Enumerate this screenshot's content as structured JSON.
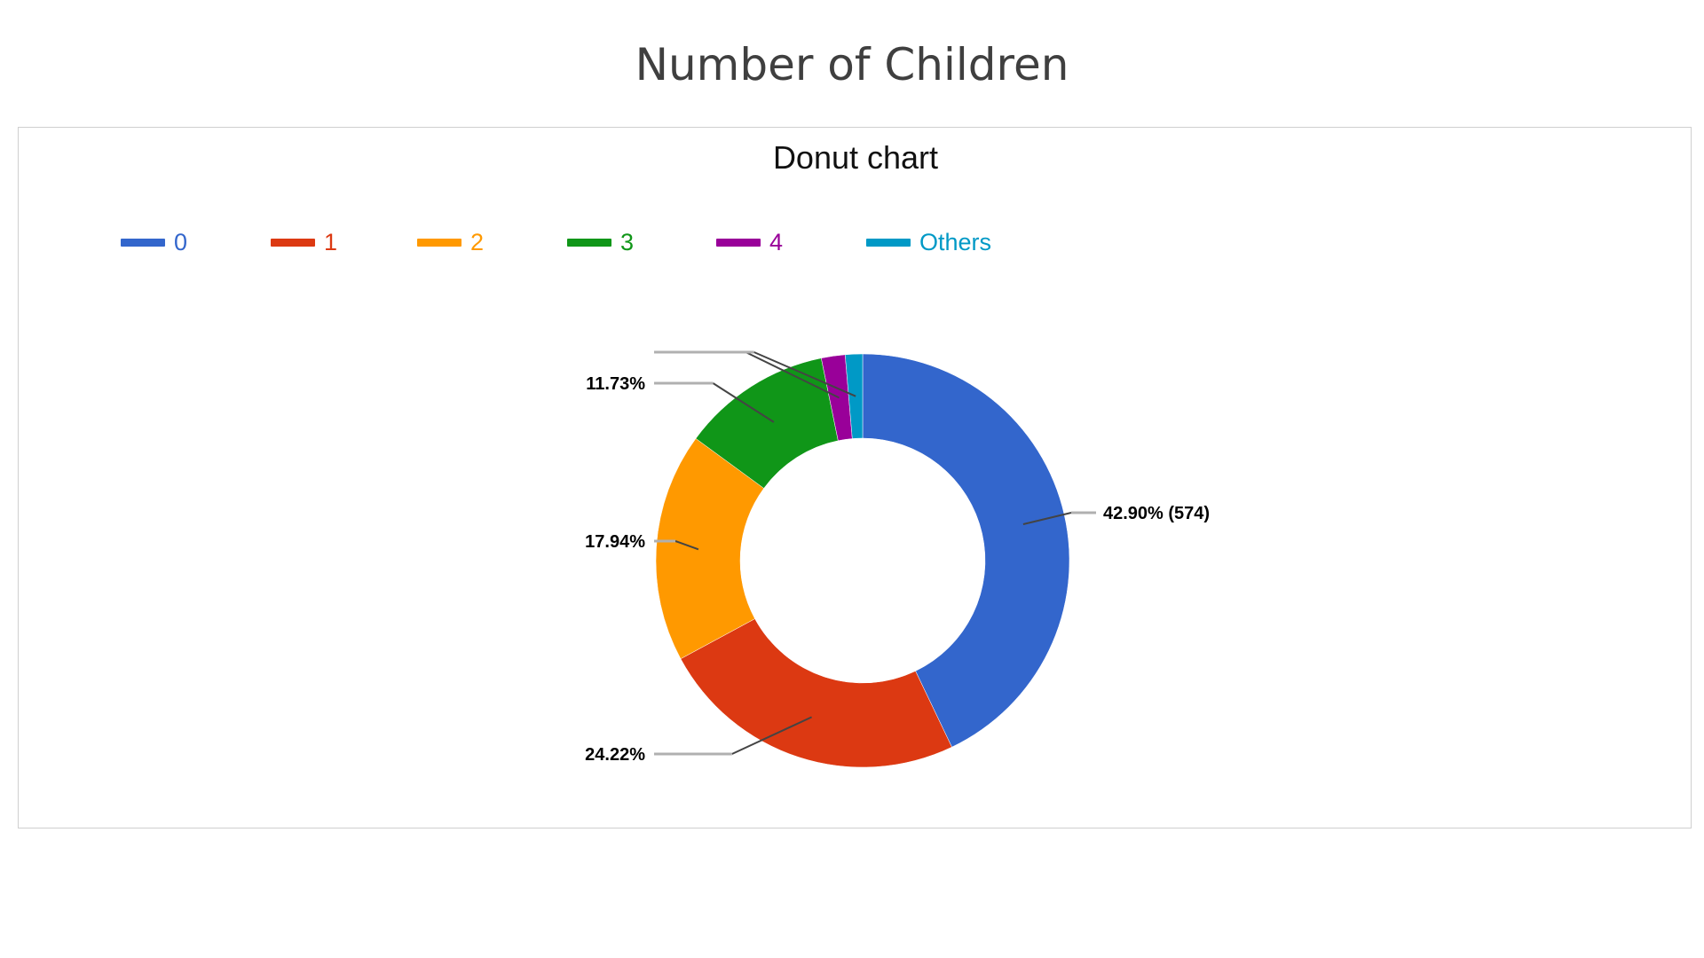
{
  "page": {
    "title": "Number of Children"
  },
  "chart_data": {
    "type": "pie",
    "donut": true,
    "title": "Donut chart",
    "legend_position": "top-left",
    "categories": [
      "0",
      "1",
      "2",
      "3",
      "4",
      "Others"
    ],
    "values": [
      42.9,
      24.22,
      17.94,
      11.73,
      1.86,
      1.35
    ],
    "counts": {
      "0": 574
    },
    "colors": [
      "#3366cc",
      "#dc3912",
      "#ff9900",
      "#109618",
      "#990099",
      "#0099c6"
    ],
    "data_labels": [
      "42.90% (574)",
      "24.22%",
      "17.94%",
      "11.73%",
      "",
      ""
    ]
  }
}
